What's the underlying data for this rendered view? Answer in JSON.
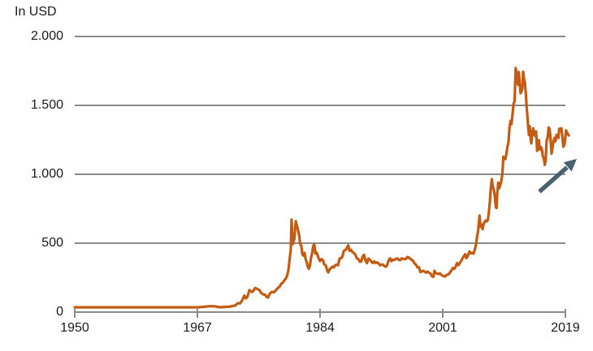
{
  "colors": {
    "line": "#C55A11",
    "grid": "#8A8A8A",
    "axis": "#8A8A8A",
    "text": "#1A1A1A",
    "arrow": "#4A6270",
    "background": "#FFFFFF"
  },
  "chart_data": {
    "type": "line",
    "title": "In USD",
    "xlabel": "",
    "ylabel": "",
    "grid": true,
    "legend": "none",
    "annotation": {
      "type": "arrow-up-right",
      "meaning": "rising trend at right edge"
    },
    "y_axis": {
      "min": 0,
      "max": 2000,
      "ticks": [
        {
          "value": 2000,
          "label": "2.000"
        },
        {
          "value": 1500,
          "label": "1.500"
        },
        {
          "value": 1000,
          "label": "1.000"
        },
        {
          "value": 500,
          "label": "500"
        },
        {
          "value": 0,
          "label": "0"
        }
      ]
    },
    "x_axis": {
      "ticks": [
        {
          "value": 1950,
          "label": "1950"
        },
        {
          "value": 1967,
          "label": "1967"
        },
        {
          "value": 1984,
          "label": "1984"
        },
        {
          "value": 2001,
          "label": "2001"
        },
        {
          "value": 2019,
          "label": "2019"
        }
      ]
    },
    "series": [
      {
        "points": [
          [
            1950,
            35
          ],
          [
            1951,
            35
          ],
          [
            1952,
            35
          ],
          [
            1953,
            35
          ],
          [
            1954,
            35
          ],
          [
            1955,
            35
          ],
          [
            1956,
            35
          ],
          [
            1957,
            35
          ],
          [
            1958,
            35
          ],
          [
            1959,
            35
          ],
          [
            1960,
            35
          ],
          [
            1961,
            35
          ],
          [
            1962,
            35
          ],
          [
            1963,
            35
          ],
          [
            1964,
            35
          ],
          [
            1965,
            35
          ],
          [
            1966,
            35
          ],
          [
            1967,
            35
          ],
          [
            1968,
            39
          ],
          [
            1968.5,
            42
          ],
          [
            1969,
            43
          ],
          [
            1969.5,
            41
          ],
          [
            1970,
            36
          ],
          [
            1970.5,
            36
          ],
          [
            1971,
            38
          ],
          [
            1971.5,
            40
          ],
          [
            1971.9,
            44
          ],
          [
            1972.3,
            49
          ],
          [
            1972.6,
            65
          ],
          [
            1972.9,
            63
          ],
          [
            1973.2,
            84
          ],
          [
            1973.5,
            120
          ],
          [
            1973.7,
            100
          ],
          [
            1973.9,
            107
          ],
          [
            1974.2,
            160
          ],
          [
            1974.4,
            152
          ],
          [
            1974.6,
            146
          ],
          [
            1974.8,
            158
          ],
          [
            1975,
            175
          ],
          [
            1975.2,
            170
          ],
          [
            1975.4,
            165
          ],
          [
            1975.6,
            160
          ],
          [
            1975.8,
            142
          ],
          [
            1976,
            131
          ],
          [
            1976.2,
            128
          ],
          [
            1976.4,
            125
          ],
          [
            1976.6,
            110
          ],
          [
            1976.8,
            105
          ],
          [
            1977,
            132
          ],
          [
            1977.3,
            147
          ],
          [
            1977.6,
            143
          ],
          [
            1977.9,
            160
          ],
          [
            1978.2,
            178
          ],
          [
            1978.4,
            185
          ],
          [
            1978.6,
            205
          ],
          [
            1978.8,
            212
          ],
          [
            1979,
            227
          ],
          [
            1979.2,
            240
          ],
          [
            1979.4,
            258
          ],
          [
            1979.6,
            300
          ],
          [
            1979.8,
            390
          ],
          [
            1979.95,
            460
          ],
          [
            1980.05,
            672
          ],
          [
            1980.15,
            560
          ],
          [
            1980.25,
            494
          ],
          [
            1980.35,
            515
          ],
          [
            1980.45,
            535
          ],
          [
            1980.55,
            614
          ],
          [
            1980.65,
            660
          ],
          [
            1980.75,
            630
          ],
          [
            1980.85,
            618
          ],
          [
            1980.95,
            594
          ],
          [
            1981.1,
            557
          ],
          [
            1981.25,
            495
          ],
          [
            1981.4,
            480
          ],
          [
            1981.55,
            420
          ],
          [
            1981.7,
            410
          ],
          [
            1981.85,
            430
          ],
          [
            1982,
            384
          ],
          [
            1982.15,
            362
          ],
          [
            1982.3,
            330
          ],
          [
            1982.45,
            314
          ],
          [
            1982.6,
            340
          ],
          [
            1982.75,
            395
          ],
          [
            1982.9,
            428
          ],
          [
            1983.05,
            480
          ],
          [
            1983.2,
            490
          ],
          [
            1983.35,
            425
          ],
          [
            1983.5,
            432
          ],
          [
            1983.65,
            415
          ],
          [
            1983.8,
            390
          ],
          [
            1984,
            370
          ],
          [
            1984.2,
            384
          ],
          [
            1984.4,
            376
          ],
          [
            1984.6,
            345
          ],
          [
            1984.8,
            338
          ],
          [
            1985,
            300
          ],
          [
            1985.15,
            288
          ],
          [
            1985.3,
            308
          ],
          [
            1985.45,
            316
          ],
          [
            1985.6,
            325
          ],
          [
            1985.75,
            330
          ],
          [
            1985.9,
            324
          ],
          [
            1986.1,
            340
          ],
          [
            1986.3,
            344
          ],
          [
            1986.5,
            340
          ],
          [
            1986.7,
            388
          ],
          [
            1986.9,
            390
          ],
          [
            1987.1,
            404
          ],
          [
            1987.3,
            445
          ],
          [
            1987.5,
            450
          ],
          [
            1987.7,
            462
          ],
          [
            1987.9,
            484
          ],
          [
            1988.1,
            445
          ],
          [
            1988.3,
            452
          ],
          [
            1988.5,
            435
          ],
          [
            1988.7,
            428
          ],
          [
            1988.9,
            415
          ],
          [
            1989.1,
            390
          ],
          [
            1989.3,
            385
          ],
          [
            1989.5,
            366
          ],
          [
            1989.7,
            366
          ],
          [
            1989.9,
            404
          ],
          [
            1990.1,
            415
          ],
          [
            1990.3,
            372
          ],
          [
            1990.5,
            355
          ],
          [
            1990.7,
            388
          ],
          [
            1990.9,
            380
          ],
          [
            1991.1,
            366
          ],
          [
            1991.3,
            356
          ],
          [
            1991.5,
            368
          ],
          [
            1991.7,
            356
          ],
          [
            1991.9,
            360
          ],
          [
            1992.1,
            354
          ],
          [
            1992.3,
            340
          ],
          [
            1992.5,
            344
          ],
          [
            1992.7,
            345
          ],
          [
            1992.9,
            334
          ],
          [
            1993.1,
            329
          ],
          [
            1993.3,
            340
          ],
          [
            1993.5,
            376
          ],
          [
            1993.7,
            390
          ],
          [
            1993.9,
            370
          ],
          [
            1994.1,
            380
          ],
          [
            1994.3,
            378
          ],
          [
            1994.5,
            386
          ],
          [
            1994.7,
            390
          ],
          [
            1994.9,
            380
          ],
          [
            1995.1,
            376
          ],
          [
            1995.3,
            390
          ],
          [
            1995.5,
            386
          ],
          [
            1995.7,
            384
          ],
          [
            1995.9,
            386
          ],
          [
            1996.1,
            400
          ],
          [
            1996.3,
            396
          ],
          [
            1996.5,
            386
          ],
          [
            1996.7,
            380
          ],
          [
            1996.9,
            370
          ],
          [
            1997.1,
            352
          ],
          [
            1997.3,
            345
          ],
          [
            1997.5,
            324
          ],
          [
            1997.7,
            326
          ],
          [
            1997.9,
            290
          ],
          [
            1998.1,
            295
          ],
          [
            1998.3,
            300
          ],
          [
            1998.5,
            293
          ],
          [
            1998.7,
            286
          ],
          [
            1998.9,
            294
          ],
          [
            1999.1,
            286
          ],
          [
            1999.3,
            280
          ],
          [
            1999.5,
            260
          ],
          [
            1999.7,
            256
          ],
          [
            1999.85,
            300
          ],
          [
            2000,
            284
          ],
          [
            2000.2,
            280
          ],
          [
            2000.4,
            276
          ],
          [
            2000.6,
            282
          ],
          [
            2000.8,
            270
          ],
          [
            2001,
            264
          ],
          [
            2001.2,
            260
          ],
          [
            2001.35,
            257
          ],
          [
            2001.5,
            267
          ],
          [
            2001.7,
            272
          ],
          [
            2001.9,
            276
          ],
          [
            2002.1,
            290
          ],
          [
            2002.3,
            304
          ],
          [
            2002.5,
            320
          ],
          [
            2002.7,
            314
          ],
          [
            2002.9,
            330
          ],
          [
            2003.1,
            355
          ],
          [
            2003.3,
            340
          ],
          [
            2003.5,
            356
          ],
          [
            2003.7,
            370
          ],
          [
            2003.9,
            390
          ],
          [
            2004.1,
            406
          ],
          [
            2004.3,
            420
          ],
          [
            2004.45,
            392
          ],
          [
            2004.6,
            400
          ],
          [
            2004.8,
            424
          ],
          [
            2004.95,
            440
          ],
          [
            2005.1,
            426
          ],
          [
            2005.3,
            430
          ],
          [
            2005.5,
            424
          ],
          [
            2005.7,
            450
          ],
          [
            2005.9,
            494
          ],
          [
            2006.05,
            550
          ],
          [
            2006.2,
            590
          ],
          [
            2006.4,
            700
          ],
          [
            2006.55,
            620
          ],
          [
            2006.7,
            634
          ],
          [
            2006.85,
            602
          ],
          [
            2007,
            640
          ],
          [
            2007.15,
            654
          ],
          [
            2007.3,
            664
          ],
          [
            2007.45,
            658
          ],
          [
            2007.6,
            666
          ],
          [
            2007.75,
            714
          ],
          [
            2007.9,
            790
          ],
          [
            2008.05,
            890
          ],
          [
            2008.2,
            965
          ],
          [
            2008.35,
            910
          ],
          [
            2008.5,
            888
          ],
          [
            2008.65,
            838
          ],
          [
            2008.8,
            760
          ],
          [
            2008.9,
            756
          ],
          [
            2009,
            858
          ],
          [
            2009.15,
            940
          ],
          [
            2009.3,
            898
          ],
          [
            2009.45,
            924
          ],
          [
            2009.6,
            950
          ],
          [
            2009.75,
            1000
          ],
          [
            2009.9,
            1128
          ],
          [
            2010.05,
            1114
          ],
          [
            2010.2,
            1110
          ],
          [
            2010.35,
            1150
          ],
          [
            2010.5,
            1198
          ],
          [
            2010.65,
            1234
          ],
          [
            2010.8,
            1340
          ],
          [
            2010.95,
            1388
          ],
          [
            2011.1,
            1364
          ],
          [
            2011.25,
            1440
          ],
          [
            2011.4,
            1512
          ],
          [
            2011.55,
            1530
          ],
          [
            2011.7,
            1772
          ],
          [
            2011.8,
            1738
          ],
          [
            2011.88,
            1664
          ],
          [
            2011.96,
            1738
          ],
          [
            2012.06,
            1650
          ],
          [
            2012.16,
            1742
          ],
          [
            2012.3,
            1660
          ],
          [
            2012.42,
            1588
          ],
          [
            2012.55,
            1600
          ],
          [
            2012.68,
            1620
          ],
          [
            2012.8,
            1744
          ],
          [
            2012.95,
            1688
          ],
          [
            2013.05,
            1670
          ],
          [
            2013.2,
            1588
          ],
          [
            2013.32,
            1480
          ],
          [
            2013.45,
            1412
          ],
          [
            2013.55,
            1340
          ],
          [
            2013.65,
            1286
          ],
          [
            2013.78,
            1348
          ],
          [
            2013.9,
            1256
          ],
          [
            2014,
            1224
          ],
          [
            2014.15,
            1300
          ],
          [
            2014.28,
            1334
          ],
          [
            2014.4,
            1288
          ],
          [
            2014.55,
            1280
          ],
          [
            2014.7,
            1312
          ],
          [
            2014.85,
            1170
          ],
          [
            2014.95,
            1196
          ],
          [
            2015.1,
            1248
          ],
          [
            2015.25,
            1180
          ],
          [
            2015.4,
            1198
          ],
          [
            2015.55,
            1178
          ],
          [
            2015.7,
            1130
          ],
          [
            2015.85,
            1112
          ],
          [
            2015.97,
            1068
          ],
          [
            2016.1,
            1100
          ],
          [
            2016.25,
            1244
          ],
          [
            2016.4,
            1268
          ],
          [
            2016.55,
            1340
          ],
          [
            2016.7,
            1324
          ],
          [
            2016.85,
            1234
          ],
          [
            2016.97,
            1150
          ],
          [
            2017.1,
            1192
          ],
          [
            2017.25,
            1236
          ],
          [
            2017.4,
            1264
          ],
          [
            2017.55,
            1240
          ],
          [
            2017.7,
            1286
          ],
          [
            2017.85,
            1280
          ],
          [
            2017.97,
            1264
          ],
          [
            2018.1,
            1330
          ],
          [
            2018.25,
            1322
          ],
          [
            2018.4,
            1334
          ],
          [
            2018.55,
            1280
          ],
          [
            2018.7,
            1200
          ],
          [
            2018.85,
            1214
          ],
          [
            2018.97,
            1250
          ],
          [
            2019.1,
            1318
          ],
          [
            2019.3,
            1296
          ],
          [
            2019.5,
            1282
          ]
        ]
      }
    ]
  }
}
